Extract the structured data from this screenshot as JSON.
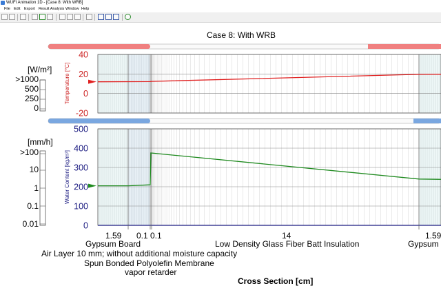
{
  "window": {
    "title": "WUFI Animation 1D - [Case 8: With WRB]"
  },
  "menu": [
    "File",
    "Edit",
    "Export",
    "Result Analysis",
    "Window",
    "Help"
  ],
  "toolbar_icons": [
    "open-icon",
    "save-icon",
    "print-icon",
    "record-icon",
    "play-icon",
    "stop-icon",
    "loop-icon",
    "copy-icon",
    "paste-icon",
    "settings-icon",
    "view-icon",
    "list-icon",
    "info-icon"
  ],
  "chart_title": "Case 8: With WRB",
  "colors": {
    "temperature": "#e02020",
    "water": "#1f8a1f",
    "heat_bar": "#f08080",
    "moisture_bar": "#7aa7e0",
    "left_axis": "#cc2020",
    "right_axis": "#1a1a80"
  },
  "left_panel": {
    "heat_unit": "[W/m²]",
    "heat_ticks": [
      ">1000",
      "500",
      "250",
      "0"
    ],
    "rain_unit": "[mm/h]",
    "rain_ticks": [
      ">100",
      "10",
      "1",
      "0.1",
      "0.01"
    ]
  },
  "layers": [
    {
      "thickness": "1.59",
      "name": "Gypsum Board"
    },
    {
      "thickness": "0.1",
      "name": "Air Layer 10 mm; without additional moisture capacity"
    },
    {
      "thickness": "0.1",
      "name": "Spun Bonded Polyolefin Membrane"
    },
    {
      "thickness": "14",
      "name": "Low Density Glass Fiber Batt Insulation"
    },
    {
      "thickness": "1.59",
      "name": "Gypsum Board"
    }
  ],
  "extra_label": "vapor retarder",
  "x_axis_label": "Cross Section [cm]",
  "chart_data": [
    {
      "type": "line",
      "ylabel": "Temperature [°C]",
      "ylim": [
        -20,
        40
      ],
      "yticks": [
        "40",
        "20",
        "0",
        "-20"
      ],
      "series": [
        {
          "x": [
            0,
            1.69,
            1.79,
            15.79,
            17.38
          ],
          "values": [
            12,
            12.2,
            12.4,
            19.6,
            19.8
          ]
        }
      ]
    },
    {
      "type": "line",
      "ylabel": "Water Content [kg/m³]",
      "ylim": [
        0,
        500
      ],
      "yticks": [
        "500",
        "400",
        "300",
        "200",
        "100",
        "0"
      ],
      "series": [
        {
          "x": [
            0,
            1.59,
            1.69,
            1.74,
            15.79,
            17.38
          ],
          "values": [
            205,
            205,
            210,
            375,
            240,
            238
          ]
        }
      ]
    }
  ]
}
